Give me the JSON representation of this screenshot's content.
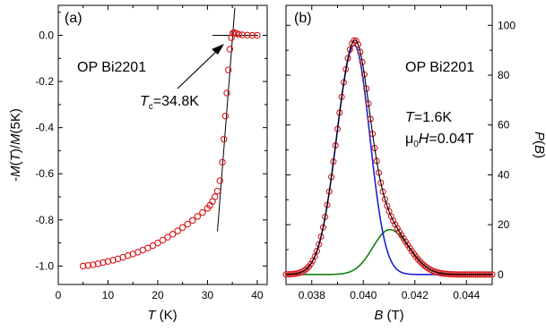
{
  "chart_data": [
    {
      "type": "scatter",
      "panel_label": "(a)",
      "annotations": [
        "OP Bi2201"
      ],
      "tc_label": {
        "italic": "T",
        "sub": "c",
        "rest": "=34.8K"
      },
      "xlabel": {
        "italic": "T",
        "rest": " (K)"
      },
      "ylabel": {
        "pre": "-",
        "italic1": "M",
        "mid1": "(",
        "italic2": "T",
        "mid2": ")/",
        "italic3": "M",
        "post": "(5K)"
      },
      "xlim": [
        0,
        42
      ],
      "ylim": [
        -1.08,
        0.13
      ],
      "xticks": [
        0,
        10,
        20,
        30,
        40
      ],
      "xtick_labels": [
        "0",
        "10",
        "20",
        "30",
        "40"
      ],
      "yticks": [
        0.0,
        -0.2,
        -0.4,
        -0.6,
        -0.8,
        -1.0
      ],
      "ytick_labels": [
        "0.0",
        "-0.2",
        "-0.4",
        "-0.6",
        "-0.8",
        "-1.0"
      ],
      "series": [
        {
          "x": [
            5,
            6,
            7,
            8,
            9,
            10,
            11,
            12,
            13,
            14,
            15,
            16,
            17,
            18,
            19,
            20,
            21,
            22,
            23,
            24,
            25,
            26,
            27,
            28,
            29,
            30,
            30.5,
            31,
            31.5,
            32,
            32.5,
            33,
            33.3,
            33.6,
            33.9,
            34.2,
            34.5,
            34.8,
            35.1,
            35.4,
            35.8,
            36.3,
            37,
            38,
            39,
            40
          ],
          "y": [
            -1.0,
            -0.997,
            -0.994,
            -0.99,
            -0.985,
            -0.98,
            -0.975,
            -0.969,
            -0.962,
            -0.955,
            -0.948,
            -0.94,
            -0.931,
            -0.922,
            -0.912,
            -0.9,
            -0.888,
            -0.875,
            -0.862,
            -0.848,
            -0.833,
            -0.818,
            -0.802,
            -0.785,
            -0.768,
            -0.75,
            -0.737,
            -0.72,
            -0.7,
            -0.675,
            -0.63,
            -0.55,
            -0.45,
            -0.35,
            -0.25,
            -0.15,
            -0.06,
            -0.01,
            0.01,
            0.012,
            0.008,
            0.004,
            0.002,
            0.001,
            0.0,
            0.0
          ],
          "marker": "open-circle",
          "color": "#d7191c"
        }
      ],
      "fits": [
        {
          "x": [
            32.0,
            35.5
          ],
          "y": [
            -0.85,
            0.12
          ],
          "color": "#000000"
        },
        {
          "x": [
            31.0,
            40.2
          ],
          "y": [
            0.0,
            0.0
          ],
          "color": "#000000"
        }
      ]
    },
    {
      "type": "line",
      "panel_label": "(b)",
      "annotations": [
        "OP Bi2201"
      ],
      "t_label": {
        "italic": "T",
        "rest": "=1.6K"
      },
      "field_label": {
        "mu": "μ",
        "sub": "0",
        "italic": "H",
        "rest": "=0.04T"
      },
      "xlabel": {
        "italic": "B",
        "rest": " (T)"
      },
      "ylabel": {
        "italic": "P",
        "mid": "(",
        "italic2": "B",
        "post": ")"
      },
      "xlim": [
        0.037,
        0.045
      ],
      "ylim": [
        -4,
        108
      ],
      "xticks": [
        0.038,
        0.04,
        0.042,
        0.044
      ],
      "xtick_labels": [
        "0.038",
        "0.040",
        "0.042",
        "0.044"
      ],
      "yticks": [
        0,
        20,
        40,
        60,
        80,
        100
      ],
      "ytick_labels": [
        "0",
        "20",
        "40",
        "60",
        "80",
        "100"
      ],
      "series": [
        {
          "name": "",
          "curve": "data",
          "color": "#d7191c",
          "marker": "open-circle"
        },
        {
          "name": "",
          "curve": "total fit",
          "color": "#000000"
        },
        {
          "name": "",
          "curve": "component 1",
          "color": "#1f1fd0",
          "amplitude": 92,
          "center": 0.03965,
          "sigma_left": 0.00068,
          "sigma_right": 0.0006
        },
        {
          "name": "",
          "curve": "component 2",
          "color": "#108010",
          "amplitude": 18,
          "center": 0.04102,
          "sigma_left": 0.00065,
          "sigma_right": 0.00075
        }
      ],
      "baseline": 0.0
    }
  ]
}
